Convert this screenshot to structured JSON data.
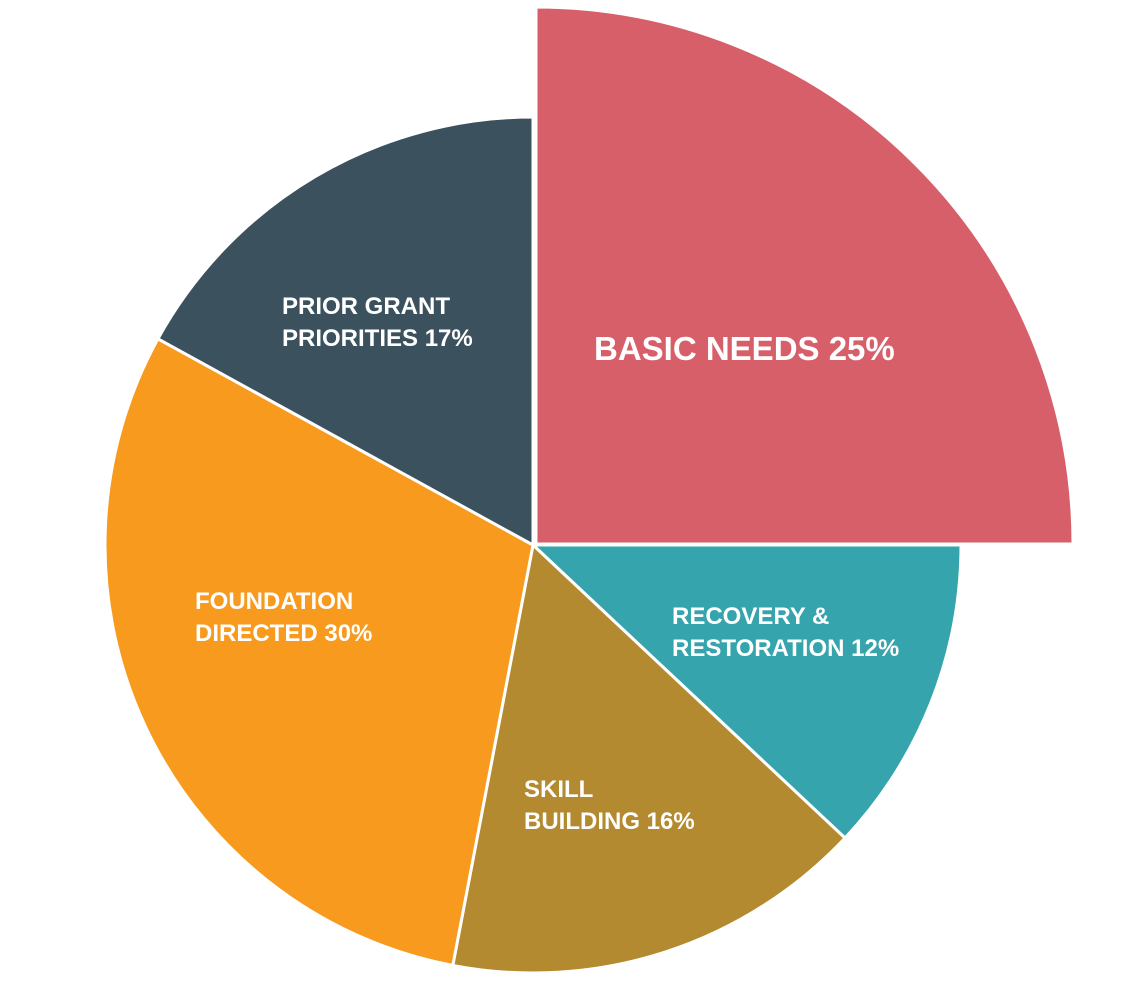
{
  "chart_data": {
    "type": "pie",
    "title": "",
    "legend": "none",
    "slices": [
      {
        "label_lines": [
          "BASIC NEEDS 25%"
        ],
        "value": 25,
        "color": "#D65F6A",
        "exploded": true
      },
      {
        "label_lines": [
          "RECOVERY &",
          "RESTORATION 12%"
        ],
        "value": 12,
        "color": "#35A4AC",
        "exploded": false
      },
      {
        "label_lines": [
          "SKILL",
          "BUILDING 16%"
        ],
        "value": 16,
        "color": "#B38A2F",
        "exploded": false
      },
      {
        "label_lines": [
          "FOUNDATION",
          "DIRECTED 30%"
        ],
        "value": 30,
        "color": "#F79A1E",
        "exploded": false
      },
      {
        "label_lines": [
          "PRIOR GRANT",
          "PRIORITIES 17%"
        ],
        "value": 17,
        "color": "#3C515E",
        "exploded": false
      }
    ]
  }
}
